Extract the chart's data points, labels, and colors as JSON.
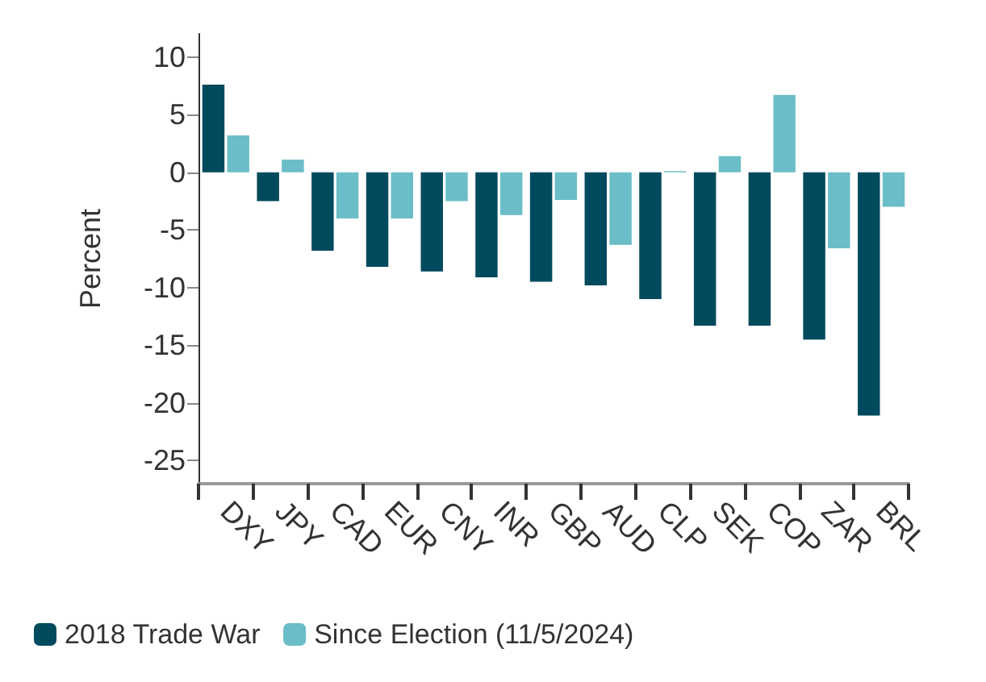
{
  "chart_data": {
    "type": "bar",
    "ylabel": "Percent",
    "categories": [
      "DXY",
      "JPY",
      "CAD",
      "EUR",
      "CNY",
      "INR",
      "GBP",
      "AUD",
      "CLP",
      "SEK",
      "COP",
      "ZAR",
      "BRL"
    ],
    "series": [
      {
        "name": "2018 Trade War",
        "color": "#004a5e",
        "values": [
          7.6,
          -2.5,
          -6.8,
          -8.2,
          -8.6,
          -9.1,
          -9.5,
          -9.8,
          -11.0,
          -13.3,
          -13.3,
          -14.5,
          -21.1
        ]
      },
      {
        "name": "Since Election (11/5/2024)",
        "color": "#6bbdc7",
        "values": [
          3.2,
          1.1,
          -4.0,
          -4.0,
          -2.5,
          -3.7,
          -2.4,
          -6.3,
          0.1,
          1.4,
          6.7,
          -6.6,
          -3.0
        ]
      }
    ],
    "ylim": [
      -27,
      12
    ],
    "yticks": [
      -25,
      -20,
      -15,
      -10,
      -5,
      0,
      5,
      10
    ],
    "grid": false,
    "legend": "bottom left"
  }
}
